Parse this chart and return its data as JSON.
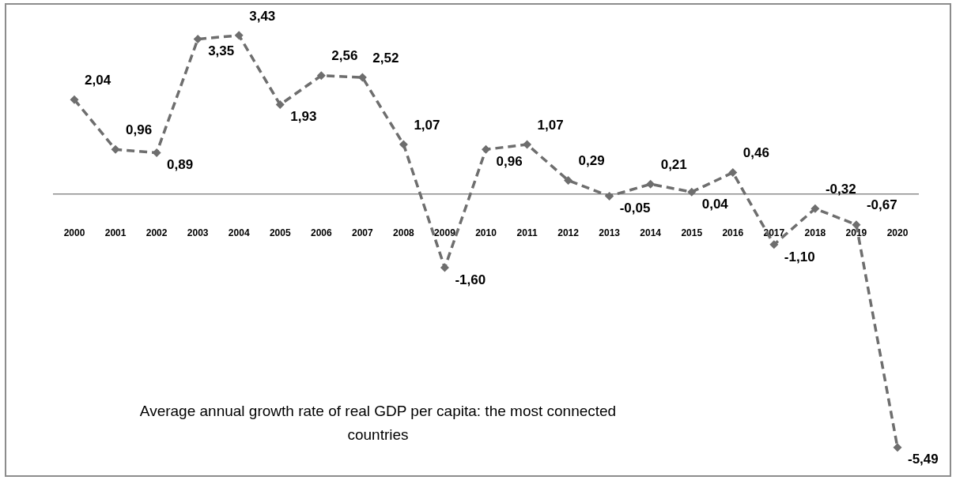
{
  "chart_data": {
    "type": "line",
    "title": "Average annual growth rate of real GDP per capita: the most connected countries",
    "categories": [
      "2000",
      "2001",
      "2002",
      "2003",
      "2004",
      "2005",
      "2006",
      "2007",
      "2008",
      "2009",
      "2010",
      "2011",
      "2012",
      "2013",
      "2014",
      "2015",
      "2016",
      "2017",
      "2018",
      "2019",
      "2020"
    ],
    "series": [
      {
        "color": "#6e6e6e",
        "values": [
          2.04,
          0.96,
          0.89,
          3.35,
          3.43,
          1.93,
          2.56,
          2.52,
          1.07,
          -1.6,
          0.96,
          1.07,
          0.29,
          -0.05,
          0.21,
          0.04,
          0.46,
          -1.1,
          -0.32,
          -0.67,
          -5.49
        ],
        "value_labels": [
          "2,04",
          "0,96",
          "0,89",
          "3,35",
          "3,43",
          "1,93",
          "2,56",
          "2,52",
          "1,07",
          "-1,60",
          "0,96",
          "1,07",
          "0,29",
          "-0,05",
          "0,21",
          "0,04",
          "0,46",
          "-1,10",
          "-0,32",
          "-0,67",
          "-5,49"
        ]
      }
    ],
    "marker": "diamond",
    "line_style": "dashed",
    "legend": false,
    "grid": false
  }
}
